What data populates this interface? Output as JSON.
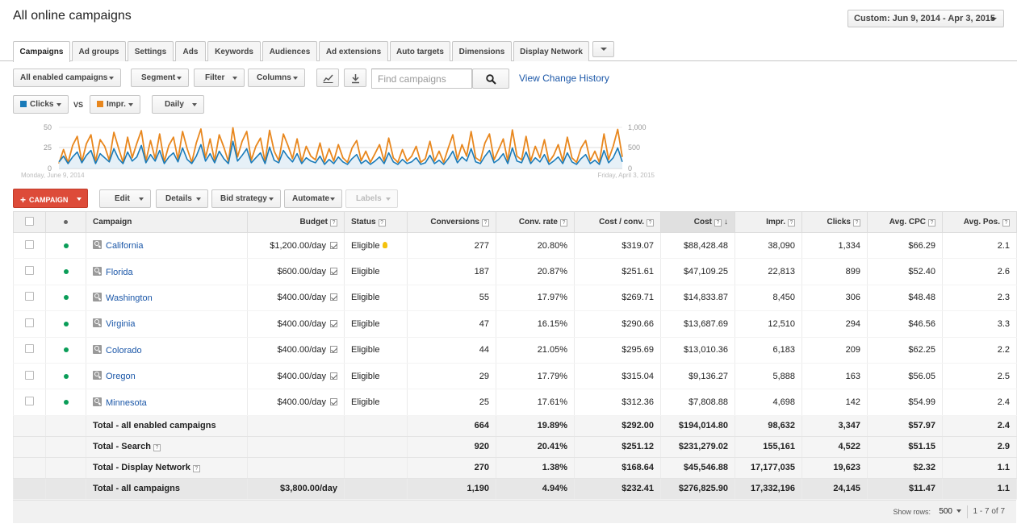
{
  "page_title": "All online campaigns",
  "date_range": "Custom: Jun 9, 2014 - Apr 3, 2015",
  "tabs": [
    {
      "label": "Campaigns",
      "active": true
    },
    {
      "label": "Ad groups"
    },
    {
      "label": "Settings"
    },
    {
      "label": "Ads"
    },
    {
      "label": "Keywords"
    },
    {
      "label": "Audiences"
    },
    {
      "label": "Ad extensions"
    },
    {
      "label": "Auto targets"
    },
    {
      "label": "Dimensions"
    },
    {
      "label": "Display Network"
    }
  ],
  "toolbar": {
    "filter_scope": "All enabled campaigns",
    "segment": "Segment",
    "filter": "Filter",
    "columns": "Columns",
    "search_placeholder": "Find campaigns",
    "view_change_history": "View Change History"
  },
  "chart_controls": {
    "metric1": "Clicks",
    "metric1_color": "#1a7bb9",
    "vs": "VS",
    "metric2": "Impr.",
    "metric2_color": "#e8871e",
    "granularity": "Daily"
  },
  "chart_data": {
    "type": "line",
    "x_start_label": "Monday, June 9, 2014",
    "x_end_label": "Friday, April 3, 2015",
    "left_axis_ticks": [
      "50",
      "25",
      "0"
    ],
    "left_ylim": [
      0,
      50
    ],
    "right_axis_ticks": [
      "1,000",
      "500",
      "0"
    ],
    "right_ylim": [
      0,
      1000
    ],
    "series": [
      {
        "name": "Clicks",
        "axis": "left",
        "color": "#1a7bb9",
        "values": [
          8,
          15,
          6,
          14,
          20,
          7,
          16,
          22,
          6,
          18,
          13,
          8,
          24,
          12,
          6,
          20,
          9,
          14,
          28,
          7,
          17,
          9,
          22,
          6,
          14,
          19,
          8,
          25,
          11,
          6,
          15,
          29,
          9,
          18,
          7,
          21,
          12,
          6,
          33,
          9,
          16,
          24,
          7,
          13,
          19,
          6,
          26,
          10,
          7,
          22,
          14,
          8,
          18,
          6,
          13,
          9,
          7,
          15,
          5,
          11,
          6,
          14,
          8,
          5,
          12,
          17,
          6,
          10,
          5,
          9,
          14,
          6,
          19,
          8,
          5,
          11,
          6,
          8,
          13,
          5,
          7,
          16,
          6,
          10,
          5,
          12,
          21,
          7,
          14,
          9,
          24,
          8,
          6,
          15,
          22,
          7,
          11,
          18,
          6,
          25,
          9,
          7,
          20,
          6,
          13,
          8,
          17,
          5,
          9,
          14,
          6,
          19,
          8,
          5,
          12,
          17,
          6,
          10,
          5,
          22,
          7,
          13,
          25,
          8
        ]
      },
      {
        "name": "Impr.",
        "axis": "right",
        "color": "#e8871e",
        "values": [
          120,
          460,
          140,
          560,
          780,
          160,
          600,
          820,
          170,
          700,
          540,
          200,
          880,
          500,
          150,
          760,
          260,
          610,
          920,
          180,
          680,
          240,
          840,
          160,
          560,
          760,
          220,
          900,
          480,
          150,
          620,
          960,
          260,
          720,
          190,
          820,
          520,
          170,
          990,
          280,
          660,
          900,
          200,
          540,
          740,
          160,
          930,
          420,
          190,
          840,
          560,
          240,
          720,
          170,
          540,
          300,
          210,
          620,
          160,
          480,
          180,
          580,
          260,
          150,
          500,
          680,
          190,
          420,
          150,
          360,
          580,
          180,
          740,
          260,
          150,
          460,
          180,
          300,
          540,
          150,
          240,
          660,
          180,
          420,
          150,
          500,
          820,
          220,
          580,
          300,
          900,
          260,
          180,
          620,
          840,
          210,
          460,
          720,
          180,
          940,
          300,
          210,
          780,
          180,
          540,
          260,
          700,
          160,
          320,
          580,
          180,
          760,
          260,
          150,
          500,
          680,
          190,
          420,
          150,
          840,
          220,
          540,
          950,
          280
        ]
      }
    ]
  },
  "action_bar": {
    "new_campaign": "CAMPAIGN",
    "edit": "Edit",
    "details": "Details",
    "bid_strategy": "Bid strategy",
    "automate": "Automate",
    "labels": "Labels"
  },
  "table": {
    "headers": {
      "campaign": "Campaign",
      "budget": "Budget",
      "status": "Status",
      "conversions": "Conversions",
      "conv_rate": "Conv. rate",
      "cost_conv": "Cost / conv.",
      "cost": "Cost",
      "impr": "Impr.",
      "clicks": "Clicks",
      "avg_cpc": "Avg. CPC",
      "avg_pos": "Avg. Pos."
    },
    "rows": [
      {
        "campaign": "California",
        "budget": "$1,200.00/day",
        "status": "Eligible",
        "conversions": "277",
        "conv_rate": "20.80%",
        "cost_conv": "$319.07",
        "cost": "$88,428.48",
        "impr": "38,090",
        "clicks": "1,334",
        "avg_cpc": "$66.29",
        "avg_pos": "2.1"
      },
      {
        "campaign": "Florida",
        "budget": "$600.00/day",
        "status": "Eligible",
        "conversions": "187",
        "conv_rate": "20.87%",
        "cost_conv": "$251.61",
        "cost": "$47,109.25",
        "impr": "22,813",
        "clicks": "899",
        "avg_cpc": "$52.40",
        "avg_pos": "2.6"
      },
      {
        "campaign": "Washington",
        "budget": "$400.00/day",
        "status": "Eligible",
        "conversions": "55",
        "conv_rate": "17.97%",
        "cost_conv": "$269.71",
        "cost": "$14,833.87",
        "impr": "8,450",
        "clicks": "306",
        "avg_cpc": "$48.48",
        "avg_pos": "2.3"
      },
      {
        "campaign": "Virginia",
        "budget": "$400.00/day",
        "status": "Eligible",
        "conversions": "47",
        "conv_rate": "16.15%",
        "cost_conv": "$290.66",
        "cost": "$13,687.69",
        "impr": "12,510",
        "clicks": "294",
        "avg_cpc": "$46.56",
        "avg_pos": "3.3"
      },
      {
        "campaign": "Colorado",
        "budget": "$400.00/day",
        "status": "Eligible",
        "conversions": "44",
        "conv_rate": "21.05%",
        "cost_conv": "$295.69",
        "cost": "$13,010.36",
        "impr": "6,183",
        "clicks": "209",
        "avg_cpc": "$62.25",
        "avg_pos": "2.2"
      },
      {
        "campaign": "Oregon",
        "budget": "$400.00/day",
        "status": "Eligible",
        "conversions": "29",
        "conv_rate": "17.79%",
        "cost_conv": "$315.04",
        "cost": "$9,136.27",
        "impr": "5,888",
        "clicks": "163",
        "avg_cpc": "$56.05",
        "avg_pos": "2.5"
      },
      {
        "campaign": "Minnesota",
        "budget": "$400.00/day",
        "status": "Eligible",
        "conversions": "25",
        "conv_rate": "17.61%",
        "cost_conv": "$312.36",
        "cost": "$7,808.88",
        "impr": "4,698",
        "clicks": "142",
        "avg_cpc": "$54.99",
        "avg_pos": "2.4"
      }
    ],
    "totals": [
      {
        "label": "Total - all enabled campaigns",
        "help": false,
        "conversions": "664",
        "conv_rate": "19.89%",
        "cost_conv": "$292.00",
        "cost": "$194,014.80",
        "impr": "98,632",
        "clicks": "3,347",
        "avg_cpc": "$57.97",
        "avg_pos": "2.4"
      },
      {
        "label": "Total - Search",
        "help": true,
        "conversions": "920",
        "conv_rate": "20.41%",
        "cost_conv": "$251.12",
        "cost": "$231,279.02",
        "impr": "155,161",
        "clicks": "4,522",
        "avg_cpc": "$51.15",
        "avg_pos": "2.9"
      },
      {
        "label": "Total - Display Network",
        "help": true,
        "conversions": "270",
        "conv_rate": "1.38%",
        "cost_conv": "$168.64",
        "cost": "$45,546.88",
        "impr": "17,177,035",
        "clicks": "19,623",
        "avg_cpc": "$2.32",
        "avg_pos": "1.1"
      }
    ],
    "grand_total": {
      "label": "Total - all campaigns",
      "budget": "$3,800.00/day",
      "conversions": "1,190",
      "conv_rate": "4.94%",
      "cost_conv": "$232.41",
      "cost": "$276,825.90",
      "impr": "17,332,196",
      "clicks": "24,145",
      "avg_cpc": "$11.47",
      "avg_pos": "1.1"
    }
  },
  "footer": {
    "show_rows_label": "Show rows:",
    "rows_value": "500",
    "range": "1 - 7 of 7"
  }
}
